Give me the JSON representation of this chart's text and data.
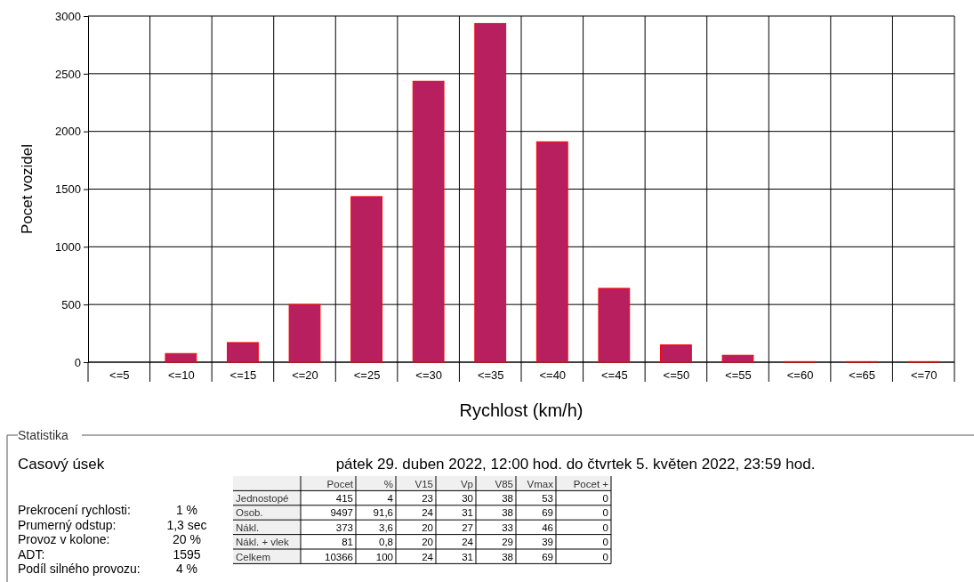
{
  "chart_data": [
    {
      "type": "bar",
      "xlabel": "Rychlost (km/h)",
      "ylabel": "Pocet vozidel",
      "categories": [
        "<=5",
        "<=10",
        "<=15",
        "<=20",
        "<=25",
        "<=30",
        "<=35",
        "<=40",
        "<=45",
        "<=50",
        "<=55",
        "<=60",
        "<=65",
        "<=70"
      ],
      "values": [
        0,
        75,
        170,
        500,
        1435,
        2435,
        2935,
        1910,
        640,
        150,
        60,
        5,
        5,
        5
      ],
      "color": "#b81f5e",
      "ylim": [
        0,
        3000
      ],
      "yticks": [
        0,
        500,
        1000,
        1500,
        2000,
        2500,
        3000
      ],
      "grid": true
    },
    {
      "type": "other",
      "title": "Statistika",
      "annotations": [
        "Casový úsek",
        "pátek 29. duben 2022, 12:00 hod. do čtvrtek 5. květen 2022, 23:59 hod.",
        "Prekrocení rychlosti:",
        "1 %",
        "Prumerný odstup:",
        "1,3 sec",
        "Provoz v kolone:",
        "20 %",
        "ADT:",
        "1595",
        "Podíl silného provozu:",
        "4 %",
        "Pocet",
        "%",
        "V15",
        "Vp",
        "V85",
        "Vmax",
        "Pocet +",
        "Jednostopé",
        "415",
        "4",
        "23",
        "30",
        "38",
        "53",
        "0",
        "Osob.",
        "9497",
        "91,6",
        "24",
        "31",
        "38",
        "69",
        "0",
        "Nákl.",
        "373",
        "3,6",
        "20",
        "27",
        "33",
        "46",
        "0",
        "Nákl. + vlek",
        "81",
        "0,8",
        "20",
        "24",
        "29",
        "39",
        "0",
        "Celkem",
        "10366",
        "100",
        "24",
        "31",
        "38",
        "69",
        "0"
      ]
    }
  ]
}
